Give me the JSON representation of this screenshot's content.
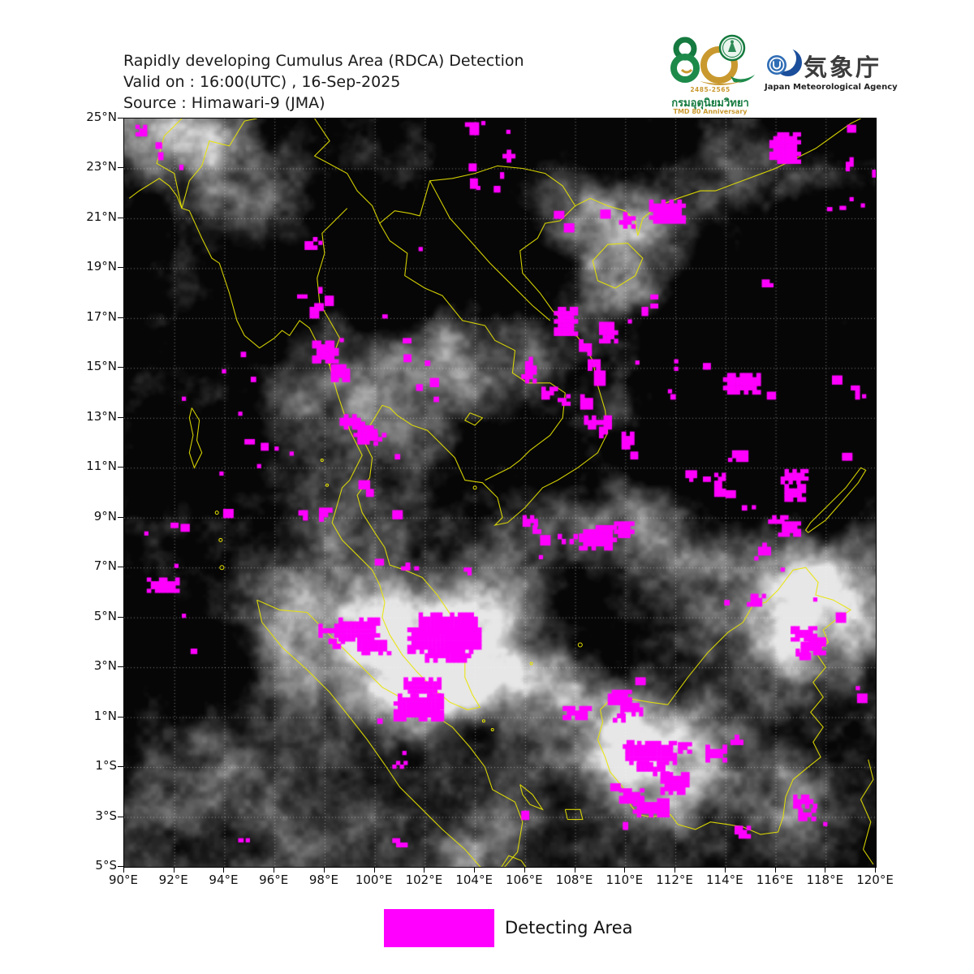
{
  "header": {
    "title": "Rapidly developing Cumulus Area (RDCA) Detection",
    "valid": "Valid on : 16:00(UTC) , 16-Sep-2025",
    "source": "Source : Himawari-9 (JMA)"
  },
  "logos": {
    "tmd": {
      "number": "80",
      "years": "2485-2565",
      "thai_name": "กรมอุตุนิยมวิทยา",
      "anniversary": "TMD 80 Anniversary"
    },
    "jma": {
      "name_jp": "気象庁",
      "name_en": "Japan Meteorological Agency"
    }
  },
  "map": {
    "lon_min": 90,
    "lon_max": 120,
    "lat_min": -5,
    "lat_max": 25,
    "grid_interval_deg": 2,
    "x_tick_labels": [
      "90°E",
      "92°E",
      "94°E",
      "96°E",
      "98°E",
      "100°E",
      "102°E",
      "104°E",
      "106°E",
      "108°E",
      "110°E",
      "112°E",
      "114°E",
      "116°E",
      "118°E",
      "120°E"
    ],
    "y_tick_labels": [
      "25°N",
      "23°N",
      "21°N",
      "19°N",
      "17°N",
      "15°N",
      "13°N",
      "11°N",
      "9°N",
      "7°N",
      "5°N",
      "3°N",
      "1°N",
      "1°S",
      "3°S",
      "5°S"
    ],
    "coastline_color": "#e8e400",
    "grid_color": "rgba(255,255,255,0.55)"
  },
  "legend": {
    "label": "Detecting Area",
    "swatch_color": "#FF00FF"
  },
  "detections": {
    "color": "#FF00FF",
    "boxes": [
      [
        90.45,
        24.75,
        0.45,
        0.45
      ],
      [
        91.25,
        24.05,
        0.25,
        0.25
      ],
      [
        91.35,
        23.65,
        0.2,
        0.3
      ],
      [
        92.2,
        23.15,
        0.15,
        0.2
      ],
      [
        97.2,
        20.25,
        0.5,
        0.5
      ],
      [
        97.75,
        20.1,
        0.15,
        0.15
      ],
      [
        103.6,
        24.85,
        0.55,
        0.5
      ],
      [
        104.25,
        24.9,
        0.15,
        0.15
      ],
      [
        105.25,
        24.55,
        0.15,
        0.15
      ],
      [
        105.1,
        23.75,
        0.5,
        0.5
      ],
      [
        105.0,
        22.85,
        0.15,
        0.25
      ],
      [
        103.75,
        23.2,
        0.3,
        0.3
      ],
      [
        103.8,
        22.6,
        0.3,
        0.4
      ],
      [
        104.05,
        22.3,
        0.15,
        0.15
      ],
      [
        104.75,
        22.3,
        0.25,
        0.25
      ],
      [
        115.75,
        24.45,
        1.25,
        1.25
      ],
      [
        118.85,
        24.75,
        0.35,
        0.3
      ],
      [
        118.8,
        23.45,
        0.3,
        0.55
      ],
      [
        119.85,
        22.95,
        0.15,
        0.3
      ],
      [
        118.95,
        21.85,
        0.15,
        0.15
      ],
      [
        119.4,
        21.6,
        0.15,
        0.15
      ],
      [
        118.05,
        21.45,
        0.2,
        0.15
      ],
      [
        118.55,
        21.5,
        0.25,
        0.15
      ],
      [
        110.95,
        21.75,
        1.45,
        0.95
      ],
      [
        109.0,
        21.35,
        0.4,
        0.35
      ],
      [
        109.75,
        21.25,
        0.65,
        0.65
      ],
      [
        107.15,
        21.3,
        0.4,
        0.3
      ],
      [
        107.55,
        20.8,
        0.4,
        0.35
      ],
      [
        101.75,
        19.85,
        0.15,
        0.15
      ],
      [
        100.3,
        17.15,
        0.2,
        0.15
      ],
      [
        96.9,
        17.95,
        0.4,
        0.15
      ],
      [
        97.75,
        18.25,
        0.15,
        0.25
      ],
      [
        98.0,
        17.9,
        0.35,
        0.4
      ],
      [
        97.4,
        17.6,
        0.55,
        0.6
      ],
      [
        98.6,
        16.2,
        0.15,
        0.15
      ],
      [
        97.5,
        16.1,
        1.05,
        0.9
      ],
      [
        98.25,
        15.15,
        0.75,
        0.7
      ],
      [
        115.45,
        18.55,
        0.45,
        0.3
      ],
      [
        111.0,
        17.95,
        0.3,
        0.55
      ],
      [
        110.65,
        17.45,
        0.25,
        0.35
      ],
      [
        110.1,
        16.95,
        0.15,
        0.15
      ],
      [
        107.15,
        17.45,
        0.95,
        1.15
      ],
      [
        108.95,
        16.85,
        0.75,
        0.85
      ],
      [
        108.15,
        16.15,
        0.5,
        0.65
      ],
      [
        108.5,
        15.5,
        0.5,
        0.6
      ],
      [
        108.75,
        14.9,
        0.45,
        0.6
      ],
      [
        105.85,
        15.45,
        0.6,
        1.05
      ],
      [
        106.65,
        14.25,
        0.65,
        0.5
      ],
      [
        107.3,
        13.95,
        0.5,
        0.45
      ],
      [
        108.2,
        13.95,
        0.5,
        0.6
      ],
      [
        108.35,
        13.1,
        1.1,
        0.55
      ],
      [
        108.95,
        12.65,
        0.5,
        0.45
      ],
      [
        109.85,
        12.45,
        0.5,
        0.7
      ],
      [
        110.2,
        11.65,
        0.3,
        0.3
      ],
      [
        110.4,
        15.3,
        0.3,
        0.45
      ],
      [
        111.95,
        15.35,
        0.3,
        0.45
      ],
      [
        113.1,
        15.2,
        0.3,
        0.25
      ],
      [
        111.7,
        14.15,
        0.15,
        0.15
      ],
      [
        113.9,
        14.8,
        1.5,
        0.85
      ],
      [
        115.65,
        14.05,
        0.35,
        0.3
      ],
      [
        111.8,
        13.95,
        0.2,
        0.2
      ],
      [
        118.25,
        14.7,
        0.4,
        0.35
      ],
      [
        119.0,
        14.3,
        0.35,
        0.55
      ],
      [
        119.45,
        13.95,
        0.15,
        0.15
      ],
      [
        114.1,
        11.7,
        0.8,
        0.45
      ],
      [
        118.65,
        11.6,
        0.4,
        0.3
      ],
      [
        116.2,
        10.95,
        1.1,
        0.6
      ],
      [
        116.35,
        10.35,
        0.85,
        0.7
      ],
      [
        112.4,
        10.9,
        0.45,
        0.45
      ],
      [
        113.1,
        10.65,
        0.3,
        0.2
      ],
      [
        113.55,
        10.8,
        0.45,
        0.95
      ],
      [
        114.0,
        10.1,
        0.4,
        0.3
      ],
      [
        94.65,
        15.65,
        0.2,
        0.2
      ],
      [
        93.9,
        14.95,
        0.15,
        0.15
      ],
      [
        95.05,
        14.65,
        0.2,
        0.2
      ],
      [
        92.3,
        13.85,
        0.15,
        0.15
      ],
      [
        94.55,
        13.25,
        0.15,
        0.15
      ],
      [
        94.8,
        12.15,
        0.4,
        0.2
      ],
      [
        95.45,
        12.0,
        0.3,
        0.3
      ],
      [
        96.0,
        11.85,
        0.15,
        0.15
      ],
      [
        96.6,
        11.65,
        0.15,
        0.15
      ],
      [
        95.3,
        11.15,
        0.15,
        0.15
      ],
      [
        93.8,
        10.85,
        0.15,
        0.15
      ],
      [
        100.95,
        16.2,
        0.5,
        0.2
      ],
      [
        101.15,
        15.55,
        0.3,
        0.3
      ],
      [
        102.0,
        15.3,
        0.2,
        0.2
      ],
      [
        102.2,
        14.6,
        0.35,
        0.35
      ],
      [
        101.65,
        14.35,
        0.25,
        0.25
      ],
      [
        102.35,
        13.85,
        0.2,
        0.2
      ],
      [
        98.6,
        13.15,
        1.0,
        0.6
      ],
      [
        99.15,
        12.7,
        0.95,
        0.75
      ],
      [
        99.95,
        12.4,
        0.5,
        0.5
      ],
      [
        100.8,
        11.55,
        0.2,
        0.2
      ],
      [
        99.35,
        10.5,
        0.45,
        0.35
      ],
      [
        99.65,
        10.15,
        0.3,
        0.3
      ],
      [
        93.95,
        9.35,
        0.4,
        0.35
      ],
      [
        96.95,
        9.3,
        0.55,
        0.4
      ],
      [
        97.6,
        9.4,
        0.7,
        0.55
      ],
      [
        100.7,
        9.3,
        0.4,
        0.35
      ],
      [
        91.85,
        8.8,
        0.3,
        0.2
      ],
      [
        92.25,
        8.75,
        0.35,
        0.3
      ],
      [
        90.8,
        8.45,
        0.15,
        0.15
      ],
      [
        92.0,
        7.15,
        0.15,
        0.15
      ],
      [
        100.0,
        7.35,
        0.35,
        0.25
      ],
      [
        101.05,
        7.2,
        0.7,
        0.3
      ],
      [
        103.4,
        7.0,
        0.45,
        0.3
      ],
      [
        90.9,
        6.6,
        1.3,
        0.6
      ],
      [
        92.3,
        5.15,
        0.15,
        0.15
      ],
      [
        92.65,
        3.75,
        0.25,
        0.2
      ],
      [
        97.75,
        4.75,
        0.95,
        0.55
      ],
      [
        98.55,
        5.0,
        1.65,
        0.95
      ],
      [
        99.3,
        4.25,
        1.35,
        0.75
      ],
      [
        98.15,
        4.15,
        0.65,
        0.4
      ],
      [
        101.75,
        5.2,
        2.35,
        1.0
      ],
      [
        101.3,
        4.6,
        2.95,
        1.05
      ],
      [
        102.0,
        3.75,
        2.0,
        0.55
      ],
      [
        101.15,
        2.6,
        1.5,
        0.8
      ],
      [
        100.75,
        1.95,
        2.0,
        1.1
      ],
      [
        102.25,
        1.3,
        0.5,
        0.45
      ],
      [
        100.1,
        0.95,
        0.2,
        0.2
      ],
      [
        101.1,
        -0.35,
        0.15,
        0.15
      ],
      [
        100.7,
        -0.75,
        0.6,
        0.3
      ],
      [
        94.55,
        -3.85,
        0.2,
        0.15
      ],
      [
        94.85,
        -3.85,
        0.15,
        0.15
      ],
      [
        100.7,
        -3.85,
        0.6,
        0.35
      ],
      [
        105.85,
        -2.75,
        0.3,
        0.35
      ],
      [
        105.9,
        9.1,
        0.6,
        0.45
      ],
      [
        106.3,
        8.7,
        0.5,
        0.5
      ],
      [
        106.6,
        8.3,
        0.4,
        0.4
      ],
      [
        107.3,
        8.35,
        0.95,
        0.4
      ],
      [
        108.15,
        8.7,
        1.5,
        1.0
      ],
      [
        109.55,
        8.85,
        0.8,
        0.65
      ],
      [
        106.55,
        7.5,
        0.15,
        0.15
      ],
      [
        114.65,
        9.5,
        0.2,
        0.2
      ],
      [
        115.05,
        9.5,
        0.15,
        0.15
      ],
      [
        115.7,
        9.1,
        0.8,
        0.5
      ],
      [
        116.1,
        8.85,
        0.9,
        0.6
      ],
      [
        115.3,
        8.0,
        0.5,
        0.5
      ],
      [
        115.15,
        7.45,
        0.15,
        0.15
      ],
      [
        116.2,
        7.0,
        0.15,
        0.15
      ],
      [
        113.95,
        5.7,
        0.2,
        0.2
      ],
      [
        114.85,
        5.95,
        0.75,
        0.5
      ],
      [
        117.5,
        5.8,
        0.15,
        0.15
      ],
      [
        118.4,
        5.2,
        0.4,
        0.4
      ],
      [
        116.6,
        4.65,
        1.05,
        0.6
      ],
      [
        117.0,
        4.2,
        1.0,
        0.7
      ],
      [
        116.8,
        3.75,
        0.6,
        0.45
      ],
      [
        119.2,
        2.25,
        0.15,
        0.15
      ],
      [
        119.25,
        1.95,
        0.4,
        0.55
      ],
      [
        110.4,
        2.6,
        0.4,
        0.3
      ],
      [
        109.3,
        2.1,
        0.95,
        0.6
      ],
      [
        109.8,
        1.75,
        0.9,
        0.7
      ],
      [
        109.5,
        1.15,
        0.5,
        0.35
      ],
      [
        107.5,
        1.45,
        1.15,
        0.55
      ],
      [
        109.9,
        0.25,
        0.45,
        0.5
      ],
      [
        110.0,
        0.05,
        2.05,
        0.95
      ],
      [
        110.45,
        -0.8,
        1.3,
        0.55
      ],
      [
        112.1,
        0.0,
        0.55,
        0.45
      ],
      [
        113.2,
        -0.1,
        0.85,
        0.7
      ],
      [
        114.2,
        0.3,
        0.5,
        0.4
      ],
      [
        111.4,
        -1.2,
        1.15,
        0.9
      ],
      [
        109.75,
        -1.85,
        1.0,
        0.6
      ],
      [
        110.3,
        -2.25,
        1.45,
        0.75
      ],
      [
        109.4,
        -1.65,
        0.4,
        0.3
      ],
      [
        109.9,
        -3.2,
        0.2,
        0.3
      ],
      [
        116.7,
        -2.1,
        0.95,
        0.55
      ],
      [
        116.9,
        -2.65,
        0.7,
        0.5
      ],
      [
        117.9,
        -3.2,
        0.15,
        0.15
      ],
      [
        114.2,
        -3.35,
        0.8,
        0.5
      ]
    ]
  }
}
